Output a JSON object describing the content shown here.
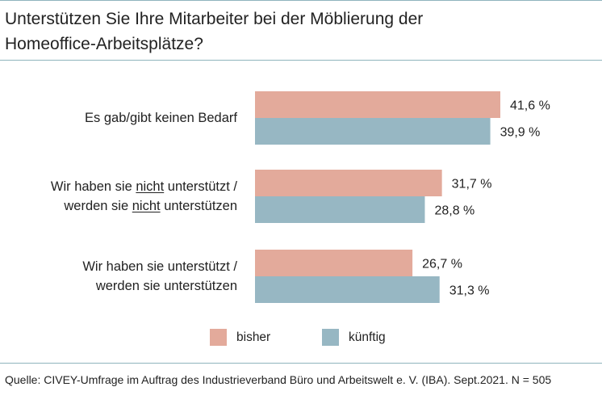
{
  "title_line1": "Unterstützen Sie Ihre Mitarbeiter bei der Möblierung der",
  "title_line2": "Homeoffice-Arbeitsplätze?",
  "colors": {
    "bisher": "#e3aa9b",
    "kuenftig": "#97b7c3",
    "rule": "#8fb4bd"
  },
  "categories": [
    {
      "lines": [
        [
          {
            "t": "Es gab/gibt keinen Bedarf",
            "u": false
          }
        ]
      ]
    },
    {
      "lines": [
        [
          {
            "t": "Wir haben sie ",
            "u": false
          },
          {
            "t": "nicht",
            "u": true
          },
          {
            "t": " unterstützt /",
            "u": false
          }
        ],
        [
          {
            "t": "werden sie ",
            "u": false
          },
          {
            "t": "nicht",
            "u": true
          },
          {
            "t": " unterstützen",
            "u": false
          }
        ]
      ]
    },
    {
      "lines": [
        [
          {
            "t": "Wir haben sie unterstützt /",
            "u": false
          }
        ],
        [
          {
            "t": "werden sie unterstützen",
            "u": false
          }
        ]
      ]
    }
  ],
  "legend": {
    "bisher": "bisher",
    "kuenftig": "künftig"
  },
  "source": "Quelle: CIVEY-Umfrage im Auftrag des Industrieverband Büro und Arbeitswelt e. V. (IBA). Sept.2021. N = 505",
  "chart_data": {
    "type": "bar",
    "orientation": "horizontal",
    "categories": [
      "Es gab/gibt keinen Bedarf",
      "Wir haben sie nicht unterstützt / werden sie nicht unterstützen",
      "Wir haben sie unterstützt / werden sie unterstützen"
    ],
    "series": [
      {
        "name": "bisher",
        "values": [
          41.6,
          31.7,
          26.7
        ],
        "labels": [
          "41,6 %",
          "31,7 %",
          "26,7 %"
        ]
      },
      {
        "name": "künftig",
        "values": [
          39.9,
          28.8,
          31.3
        ],
        "labels": [
          "39,9 %",
          "28,8 %",
          "31,3 %"
        ]
      }
    ],
    "xlim": [
      0,
      41.6
    ],
    "grid": false,
    "legend_position": "bottom"
  }
}
